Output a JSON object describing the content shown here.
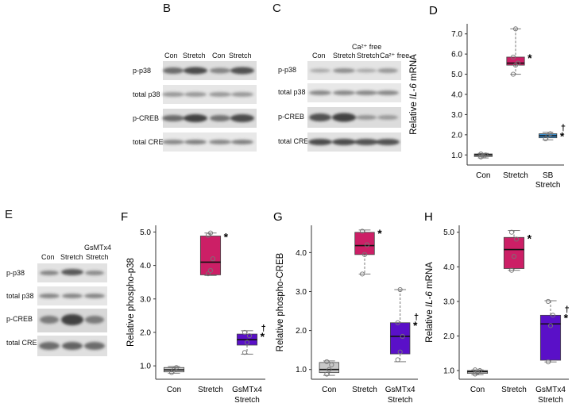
{
  "panels": {
    "B": {
      "letter": "B",
      "lanes": [
        "Con",
        "Stretch",
        "Con",
        "Stretch"
      ],
      "rows": [
        "p-p38",
        "total p38",
        "p-CREB",
        "total CREB"
      ]
    },
    "C": {
      "letter": "C",
      "lanes": [
        "Con",
        "Stretch",
        "Stretch",
        "Ca²⁺ free"
      ],
      "lane_header": "Ca²⁺ free",
      "rows": [
        "p-p38",
        "total p38",
        "p-CREB",
        "total CREB"
      ]
    },
    "E": {
      "letter": "E",
      "lanes": [
        "Con",
        "Stretch",
        "GsMTx4",
        "Stretch"
      ],
      "rows": [
        "p-p38",
        "total p38",
        "p-CREB",
        "total CREB"
      ]
    }
  },
  "colors": {
    "con": "#c8c8c8",
    "stretch": "#cc1f66",
    "sb": "#3a8fd0",
    "gsm": "#5a10c8"
  },
  "chart_data": [
    {
      "id": "D",
      "letter": "D",
      "type": "boxplot",
      "ylabel_pre": "Relative ",
      "ylabel_ital": "IL-6",
      "ylabel_post": " mRNA",
      "ylim": [
        0.5,
        7.5
      ],
      "yticks": [
        1.0,
        2.0,
        3.0,
        4.0,
        5.0,
        6.0,
        7.0
      ],
      "ytick_labels": [
        "1.0",
        "2.0",
        "3.0",
        "4.0",
        "5.0",
        "6.0",
        "7.0"
      ],
      "categories": [
        "Con",
        "Stretch",
        "SB"
      ],
      "category_sublabels": [
        "",
        "",
        "Stretch"
      ],
      "boxes": [
        {
          "min": 0.85,
          "q1": 0.92,
          "median": 1.0,
          "q3": 1.05,
          "max": 1.08,
          "color": "con",
          "points": [
            0.9,
            0.95,
            1.0,
            1.05
          ],
          "mark": ""
        },
        {
          "min": 5.0,
          "q1": 5.45,
          "median": 5.55,
          "q3": 5.85,
          "max": 7.25,
          "color": "stretch",
          "points": [
            5.0,
            5.45,
            5.55,
            5.85,
            7.25
          ],
          "mark": "*"
        },
        {
          "min": 1.75,
          "q1": 1.85,
          "median": 1.95,
          "q3": 2.05,
          "max": 2.12,
          "color": "sb",
          "points": [
            1.8,
            1.95,
            2.05
          ],
          "mark": "*†"
        }
      ]
    },
    {
      "id": "F",
      "letter": "F",
      "type": "boxplot",
      "ylabel_pre": "Relative phospho-p38",
      "ylabel_ital": "",
      "ylabel_post": "",
      "ylim": [
        0.6,
        5.2
      ],
      "yticks": [
        1.0,
        2.0,
        3.0,
        4.0,
        5.0
      ],
      "ytick_labels": [
        "1.0",
        "2.0",
        "3.0",
        "4.0",
        "5.0"
      ],
      "categories": [
        "Con",
        "Stretch",
        "GsMTx4"
      ],
      "category_sublabels": [
        "",
        "",
        "Stretch"
      ],
      "boxes": [
        {
          "min": 0.78,
          "q1": 0.82,
          "median": 0.88,
          "q3": 0.95,
          "max": 0.98,
          "color": "con",
          "points": [
            0.8,
            0.88,
            0.95
          ],
          "mark": ""
        },
        {
          "min": 3.7,
          "q1": 3.72,
          "median": 4.1,
          "q3": 4.88,
          "max": 4.97,
          "color": "stretch",
          "points": [
            3.75,
            3.85,
            4.2,
            4.9,
            4.97
          ],
          "mark": "*"
        },
        {
          "min": 1.35,
          "q1": 1.62,
          "median": 1.78,
          "q3": 1.95,
          "max": 2.05,
          "color": "gsm",
          "points": [
            1.4,
            1.7,
            1.9,
            2.0
          ],
          "mark": "*†"
        }
      ]
    },
    {
      "id": "G",
      "letter": "G",
      "type": "boxplot",
      "ylabel_pre": "Relative phospho-CREB",
      "ylabel_ital": "",
      "ylabel_post": "",
      "ylim": [
        0.75,
        4.7
      ],
      "yticks": [
        1.0,
        2.0,
        3.0,
        4.0
      ],
      "ytick_labels": [
        "1.0",
        "2.0",
        "3.0",
        "4.0"
      ],
      "categories": [
        "Con",
        "Stretch",
        "GsMTx4"
      ],
      "category_sublabels": [
        "",
        "",
        "Stretch"
      ],
      "boxes": [
        {
          "min": 0.85,
          "q1": 0.92,
          "median": 1.0,
          "q3": 1.18,
          "max": 1.22,
          "color": "con",
          "points": [
            0.88,
            1.0,
            1.12,
            1.2
          ],
          "mark": ""
        },
        {
          "min": 3.45,
          "q1": 3.95,
          "median": 4.18,
          "q3": 4.52,
          "max": 4.58,
          "color": "stretch",
          "points": [
            3.45,
            3.95,
            4.2,
            4.55
          ],
          "mark": "*"
        },
        {
          "min": 1.2,
          "q1": 1.4,
          "median": 1.85,
          "q3": 2.2,
          "max": 3.05,
          "color": "gsm",
          "points": [
            1.25,
            1.45,
            1.85,
            2.2,
            3.05
          ],
          "mark": "*†"
        }
      ]
    },
    {
      "id": "H",
      "letter": "H",
      "type": "boxplot",
      "ylabel_pre": "Relative ",
      "ylabel_ital": "IL-6",
      "ylabel_post": " mRNA",
      "ylim": [
        0.75,
        5.2
      ],
      "yticks": [
        1.0,
        2.0,
        3.0,
        4.0,
        5.0
      ],
      "ytick_labels": [
        "1.0",
        "2.0",
        "3.0",
        "4.0",
        "5.0"
      ],
      "categories": [
        "Con",
        "Stretch",
        "GsMTx4"
      ],
      "category_sublabels": [
        "",
        "",
        "Stretch"
      ],
      "boxes": [
        {
          "min": 0.88,
          "q1": 0.92,
          "median": 0.97,
          "q3": 1.0,
          "max": 1.02,
          "color": "con",
          "points": [
            0.9,
            0.95,
            1.0,
            1.02
          ],
          "mark": ""
        },
        {
          "min": 3.9,
          "q1": 3.95,
          "median": 4.5,
          "q3": 4.85,
          "max": 5.05,
          "color": "stretch",
          "points": [
            3.9,
            4.3,
            4.8,
            5.0
          ],
          "mark": "*"
        },
        {
          "min": 1.25,
          "q1": 1.3,
          "median": 2.35,
          "q3": 2.6,
          "max": 3.02,
          "color": "gsm",
          "points": [
            1.25,
            2.3,
            2.6,
            3.0
          ],
          "mark": "*†"
        }
      ]
    }
  ]
}
